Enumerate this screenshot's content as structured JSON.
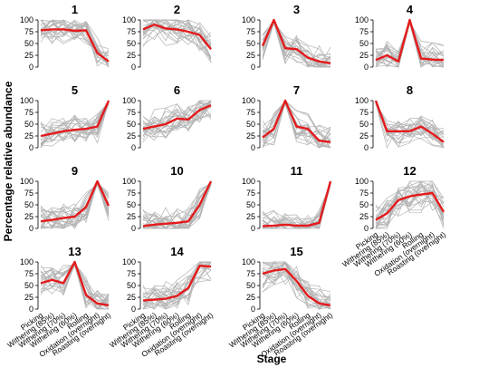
{
  "chart_data": {
    "type": "line",
    "ylabel": "Percentage relative abundance",
    "xlabel": "Stage",
    "yticks": [
      0,
      25,
      50,
      75,
      100
    ],
    "ylim": [
      0,
      100
    ],
    "x": [
      "Picking",
      "Withering (85%)",
      "Withering (70%)",
      "Withering (60%)",
      "Rolling",
      "Oxidation (overnight)",
      "Roasting (overnight)"
    ],
    "colors": {
      "background_lines": "#b3b3b3",
      "mean_line": "#e41a1c"
    },
    "panels": [
      {
        "title": "1",
        "mean": [
          78,
          80,
          80,
          77,
          78,
          30,
          12
        ]
      },
      {
        "title": "2",
        "mean": [
          80,
          90,
          82,
          80,
          75,
          68,
          38
        ]
      },
      {
        "title": "3",
        "mean": [
          45,
          100,
          40,
          38,
          20,
          12,
          8
        ]
      },
      {
        "title": "4",
        "mean": [
          15,
          25,
          12,
          100,
          18,
          16,
          15
        ]
      },
      {
        "title": "5",
        "mean": [
          25,
          30,
          35,
          38,
          40,
          45,
          100
        ]
      },
      {
        "title": "6",
        "mean": [
          40,
          45,
          50,
          62,
          60,
          80,
          90
        ]
      },
      {
        "title": "7",
        "mean": [
          22,
          40,
          100,
          45,
          40,
          15,
          12
        ]
      },
      {
        "title": "8",
        "mean": [
          100,
          35,
          35,
          35,
          45,
          30,
          12
        ]
      },
      {
        "title": "9",
        "mean": [
          15,
          18,
          22,
          25,
          45,
          100,
          48
        ]
      },
      {
        "title": "10",
        "mean": [
          5,
          8,
          10,
          12,
          15,
          50,
          100
        ]
      },
      {
        "title": "11",
        "mean": [
          5,
          6,
          8,
          6,
          6,
          12,
          100
        ]
      },
      {
        "title": "12",
        "mean": [
          18,
          32,
          60,
          68,
          72,
          75,
          35
        ]
      },
      {
        "title": "13",
        "mean": [
          55,
          62,
          55,
          100,
          30,
          12,
          8
        ]
      },
      {
        "title": "14",
        "mean": [
          18,
          20,
          22,
          28,
          45,
          92,
          90
        ]
      },
      {
        "title": "15",
        "mean": [
          75,
          82,
          85,
          60,
          28,
          12,
          8
        ]
      }
    ]
  }
}
